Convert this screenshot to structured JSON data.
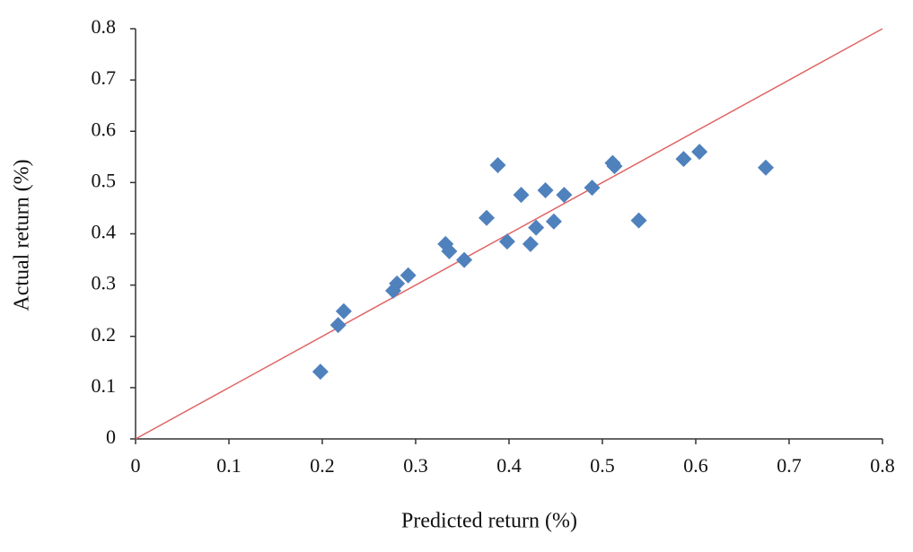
{
  "chart_data": {
    "type": "scatter",
    "xlabel": "Predicted return (%)",
    "ylabel": "Actual return (%)",
    "x": [
      0.198,
      0.217,
      0.223,
      0.276,
      0.28,
      0.292,
      0.332,
      0.336,
      0.352,
      0.376,
      0.388,
      0.398,
      0.413,
      0.423,
      0.429,
      0.439,
      0.448,
      0.459,
      0.489,
      0.511,
      0.513,
      0.539,
      0.587,
      0.604,
      0.675
    ],
    "y": [
      0.131,
      0.222,
      0.249,
      0.289,
      0.303,
      0.319,
      0.38,
      0.366,
      0.349,
      0.431,
      0.534,
      0.385,
      0.476,
      0.38,
      0.412,
      0.485,
      0.424,
      0.476,
      0.49,
      0.538,
      0.532,
      0.426,
      0.546,
      0.56,
      0.529
    ],
    "color": "#4f81bd",
    "reference_line": {
      "x": [
        0,
        0.8
      ],
      "y": [
        0,
        0.8
      ],
      "color": "#e06666"
    },
    "xlim": [
      0,
      0.8
    ],
    "ylim": [
      0,
      0.8
    ],
    "xticks": [
      0,
      0.1,
      0.2,
      0.3,
      0.4,
      0.5,
      0.6,
      0.7,
      0.8
    ],
    "yticks": [
      0,
      0.1,
      0.2,
      0.3,
      0.4,
      0.5,
      0.6,
      0.7,
      0.8
    ]
  }
}
